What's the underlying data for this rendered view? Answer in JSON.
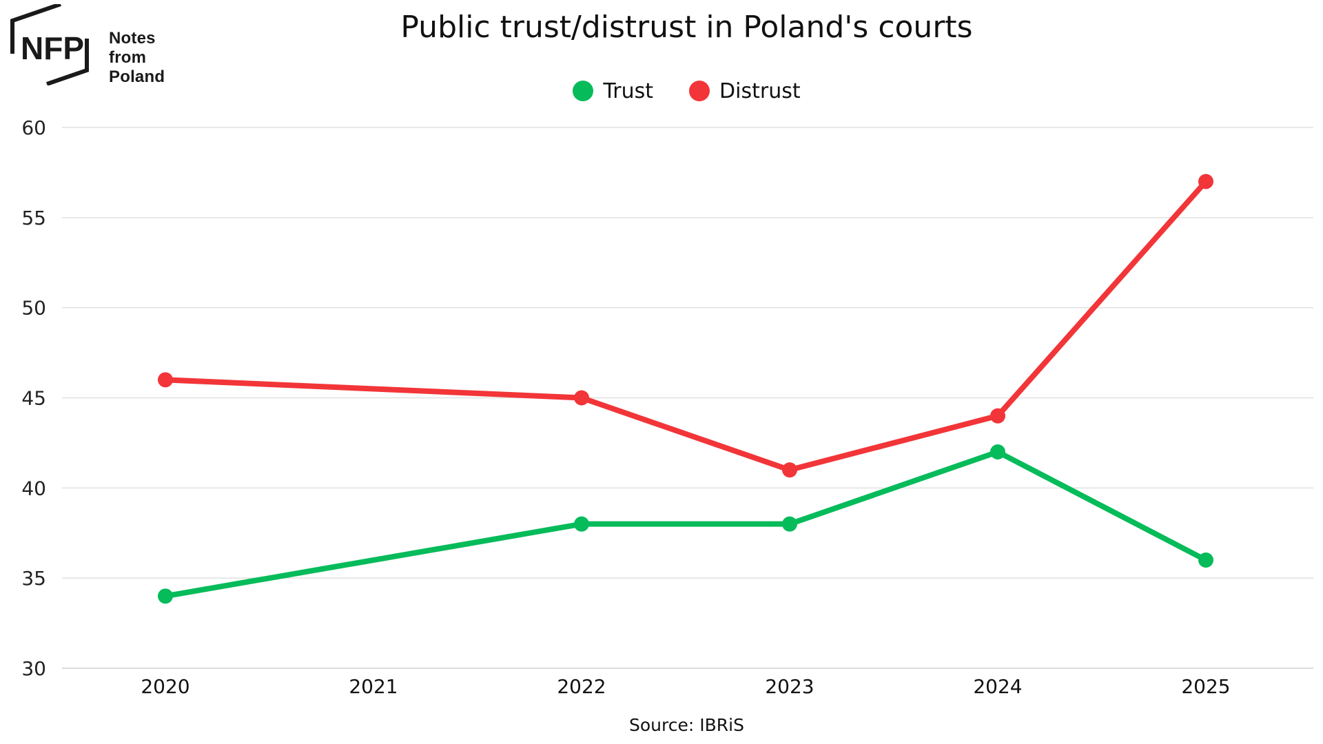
{
  "brand": {
    "line1": "Notes from",
    "line2": "Poland"
  },
  "chart_data": {
    "type": "line",
    "title": "Public trust/distrust in Poland's courts",
    "source": "Source: IBRiS",
    "x": [
      "2020",
      "2021",
      "2022",
      "2023",
      "2024",
      "2025"
    ],
    "ylim": [
      30,
      60
    ],
    "yticks": [
      30,
      35,
      40,
      45,
      50,
      55,
      60
    ],
    "grid": true,
    "legend_position": "top-center",
    "series": [
      {
        "name": "Trust",
        "color": "#06bb5a",
        "points": [
          [
            2020,
            34
          ],
          [
            2022,
            38
          ],
          [
            2023,
            38
          ],
          [
            2024,
            42
          ],
          [
            2025,
            36
          ]
        ]
      },
      {
        "name": "Distrust",
        "color": "#f23538",
        "points": [
          [
            2020,
            46
          ],
          [
            2022,
            45
          ],
          [
            2023,
            41
          ],
          [
            2024,
            44
          ],
          [
            2025,
            57
          ]
        ]
      }
    ]
  }
}
